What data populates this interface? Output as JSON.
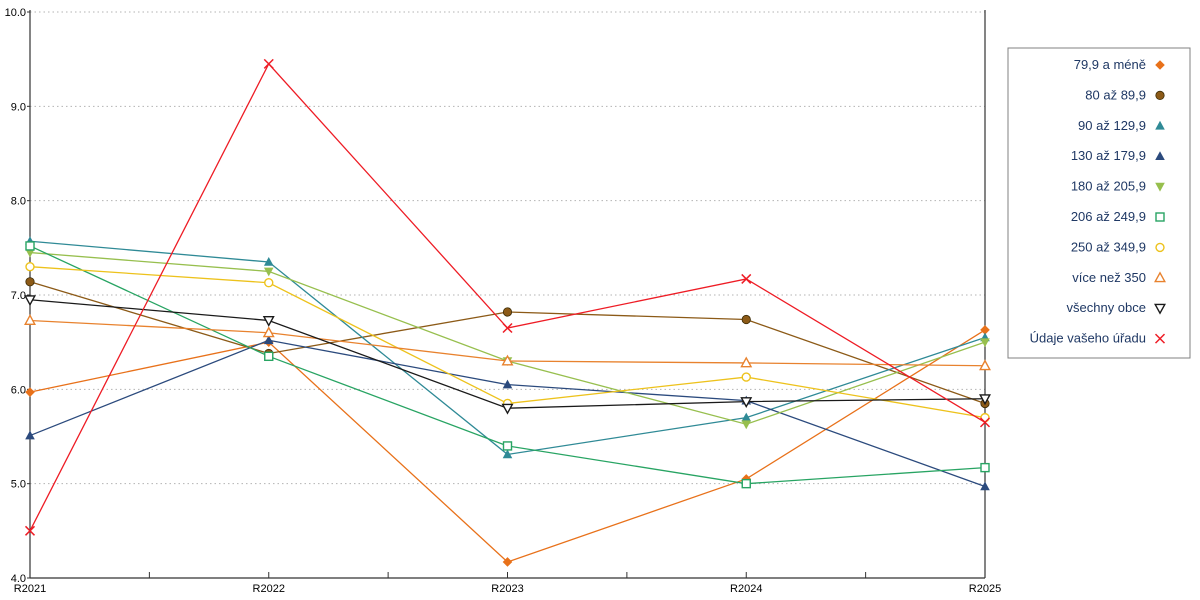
{
  "chart_data": {
    "type": "line",
    "title": "",
    "xlabel": "",
    "ylabel": "",
    "x": [
      "R2021",
      "R2022",
      "R2023",
      "R2024",
      "R2025"
    ],
    "ylim": [
      4.0,
      10.0
    ],
    "yticks": [
      {
        "value": 10.0,
        "label": "10.0"
      },
      {
        "value": 9.0,
        "label": "9.0"
      },
      {
        "value": 8.0,
        "label": "8.0"
      },
      {
        "value": 7.0,
        "label": "7.0"
      },
      {
        "value": 6.0,
        "label": "6.0"
      },
      {
        "value": 5.0,
        "label": "5.0"
      },
      {
        "value": 4.0,
        "label": "4.0"
      }
    ],
    "grid": "horizontal-dotted",
    "legend_position": "right-outside",
    "series": [
      {
        "name": "79,9 a méně",
        "marker": "diamond-filled",
        "color": "#e8711a",
        "values": [
          5.97,
          6.5,
          4.17,
          5.05,
          6.63
        ]
      },
      {
        "name": "80 až 89,9",
        "marker": "circle-filled",
        "color": "#8c5a17",
        "values": [
          7.14,
          6.38,
          6.82,
          6.74,
          5.85
        ]
      },
      {
        "name": "90 až 129,9",
        "marker": "triangle-up-filled",
        "color": "#2f8a96",
        "values": [
          7.57,
          7.35,
          5.31,
          5.7,
          6.55
        ]
      },
      {
        "name": "130 až 179,9",
        "marker": "triangle-up-filled",
        "color": "#2b4a7d",
        "values": [
          5.51,
          6.52,
          6.05,
          5.88,
          4.97
        ]
      },
      {
        "name": "180 až 205,9",
        "marker": "triangle-down-filled",
        "color": "#97bf4e",
        "values": [
          7.45,
          7.25,
          6.3,
          5.63,
          6.5
        ]
      },
      {
        "name": "206 až 249,9",
        "marker": "square-open",
        "color": "#28a463",
        "values": [
          7.52,
          6.35,
          5.4,
          5.0,
          5.17
        ]
      },
      {
        "name": "250 až 349,9",
        "marker": "circle-open",
        "color": "#edc21c",
        "values": [
          7.3,
          7.13,
          5.85,
          6.13,
          5.7
        ]
      },
      {
        "name": "více než 350",
        "marker": "triangle-up-open",
        "color": "#e8822e",
        "values": [
          6.73,
          6.6,
          6.3,
          6.28,
          6.25
        ]
      },
      {
        "name": "všechny obce",
        "marker": "triangle-down-open",
        "color": "#1a1a1a",
        "values": [
          6.95,
          6.73,
          5.8,
          5.87,
          5.9
        ]
      },
      {
        "name": "Údaje vašeho úřadu",
        "marker": "x",
        "color": "#ee1c25",
        "values": [
          4.5,
          9.45,
          6.65,
          7.17,
          5.65
        ]
      }
    ],
    "colors": {
      "gridline": "#b3b3b3",
      "axis": "#333333",
      "legend_border": "#808080",
      "legend_text": "#1f3864",
      "background": "#ffffff"
    }
  }
}
